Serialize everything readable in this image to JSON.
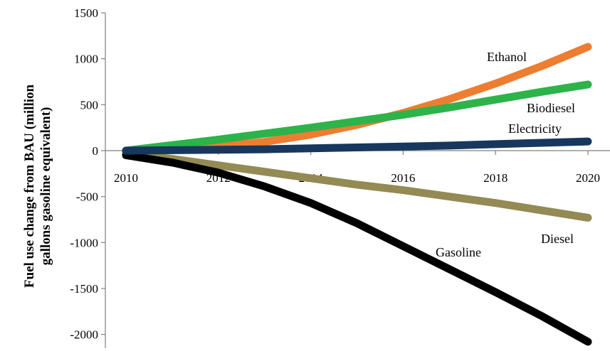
{
  "chart_data": {
    "type": "line",
    "title": "",
    "xlabel": "",
    "ylabel_lines": [
      "Fuel use change from BAU (million",
      "gallons gasoline equivalent)"
    ],
    "x": [
      2010,
      2011,
      2012,
      2013,
      2014,
      2015,
      2016,
      2017,
      2018,
      2019,
      2020
    ],
    "xlim": [
      2010,
      2020
    ],
    "ylim": [
      -2100,
      1500
    ],
    "x_ticks": [
      "2010",
      "2012",
      "2014",
      "2016",
      "2018",
      "2020"
    ],
    "y_ticks": [
      "1500",
      "1000",
      "500",
      "0",
      "-500",
      "-1000",
      "-1500",
      "-2000"
    ],
    "grid": false,
    "legend": "none (series labeled inline)",
    "series": [
      {
        "name": "Diesel",
        "color": "#948a54",
        "values": [
          -30,
          -90,
          -160,
          -230,
          -300,
          -370,
          -430,
          -500,
          -570,
          -650,
          -730
        ]
      },
      {
        "name": "Gasoline",
        "color": "#000000",
        "values": [
          -50,
          -130,
          -240,
          -390,
          -570,
          -790,
          -1040,
          -1290,
          -1540,
          -1800,
          -2080
        ]
      },
      {
        "name": "Ethanol",
        "color": "#ed7d31",
        "values": [
          0,
          15,
          40,
          95,
          175,
          280,
          410,
          560,
          730,
          920,
          1130
        ]
      },
      {
        "name": "Biodiesel",
        "color": "#2db34a",
        "values": [
          0,
          60,
          120,
          185,
          250,
          320,
          390,
          470,
          555,
          640,
          720
        ]
      },
      {
        "name": "Electricity",
        "color": "#17375e",
        "values": [
          0,
          5,
          10,
          15,
          25,
          35,
          45,
          55,
          70,
          85,
          100
        ]
      }
    ]
  }
}
